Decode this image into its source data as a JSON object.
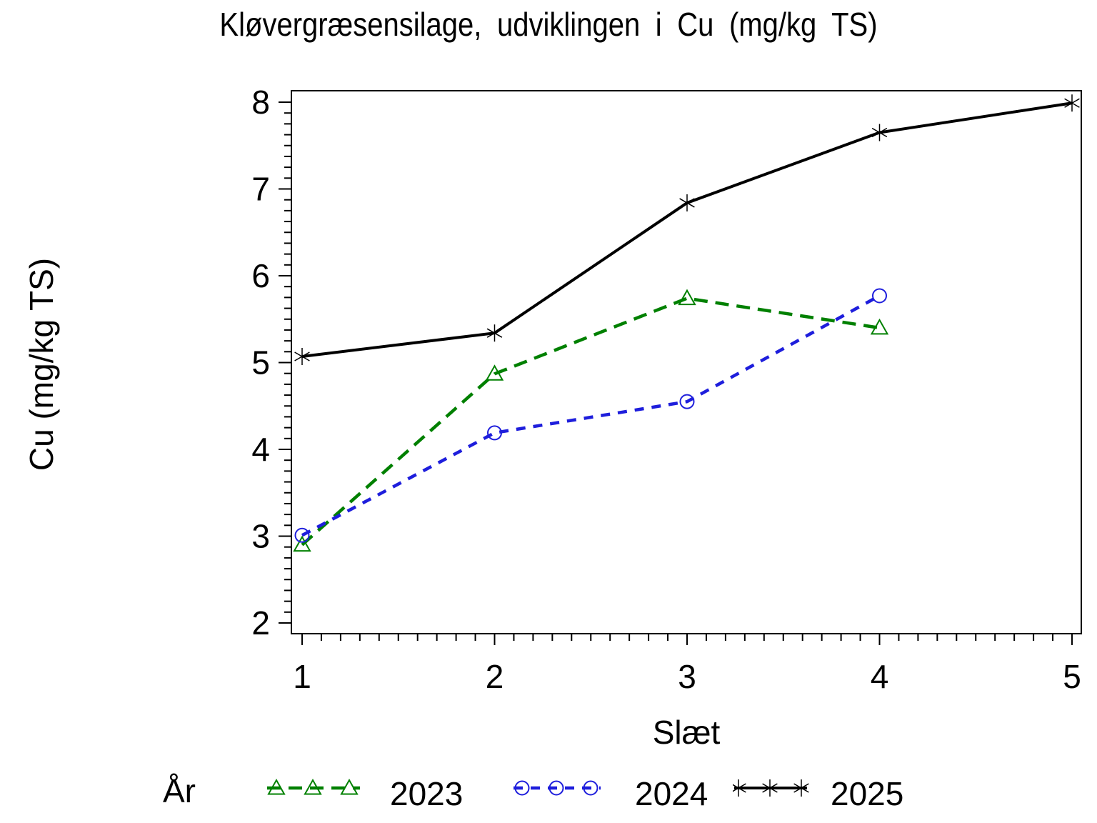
{
  "chart_data": {
    "type": "line",
    "title": "Kløvergræsensilage, udviklingen i Cu (mg/kg TS)",
    "xlabel": "Slæt",
    "ylabel": "Cu (mg/kg TS)",
    "legend_title": "År",
    "legend_position": "bottom",
    "grid": false,
    "xlim": [
      1,
      5
    ],
    "ylim": [
      2,
      8
    ],
    "x_major_ticks": [
      1,
      2,
      3,
      4,
      5
    ],
    "y_major_ticks": [
      2,
      3,
      4,
      5,
      6,
      7,
      8
    ],
    "x_minor_step": 0.1,
    "y_minor_step": 0.125,
    "series": [
      {
        "name": "2023",
        "color": "#008000",
        "line_style": "dashed",
        "dash": "19 11",
        "marker": "triangle",
        "x": [
          1,
          2,
          3,
          4
        ],
        "values": [
          2.9,
          4.87,
          5.74,
          5.4
        ]
      },
      {
        "name": "2024",
        "color": "#1e1edc",
        "line_style": "dashed",
        "dash": "13 11",
        "marker": "circle",
        "x": [
          1,
          2,
          3,
          4
        ],
        "values": [
          3.01,
          4.19,
          4.55,
          5.77
        ]
      },
      {
        "name": "2025",
        "color": "#000000",
        "line_style": "solid",
        "dash": null,
        "marker": "star",
        "x": [
          1,
          2,
          3,
          4,
          5
        ],
        "values": [
          5.07,
          5.34,
          6.84,
          7.65,
          7.99
        ]
      }
    ]
  }
}
